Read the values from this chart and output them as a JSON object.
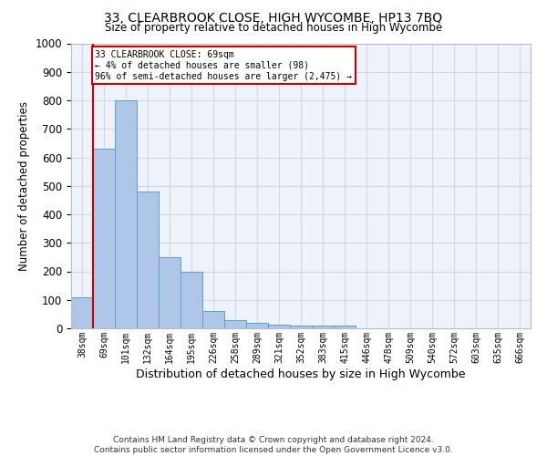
{
  "title": "33, CLEARBROOK CLOSE, HIGH WYCOMBE, HP13 7BQ",
  "subtitle": "Size of property relative to detached houses in High Wycombe",
  "xlabel": "Distribution of detached houses by size in High Wycombe",
  "ylabel": "Number of detached properties",
  "footer_line1": "Contains HM Land Registry data © Crown copyright and database right 2024.",
  "footer_line2": "Contains public sector information licensed under the Open Government Licence v3.0.",
  "bin_labels": [
    "38sqm",
    "69sqm",
    "101sqm",
    "132sqm",
    "164sqm",
    "195sqm",
    "226sqm",
    "258sqm",
    "289sqm",
    "321sqm",
    "352sqm",
    "383sqm",
    "415sqm",
    "446sqm",
    "478sqm",
    "509sqm",
    "540sqm",
    "572sqm",
    "603sqm",
    "635sqm",
    "666sqm"
  ],
  "bar_values": [
    110,
    630,
    800,
    480,
    250,
    200,
    62,
    28,
    20,
    13,
    10,
    10,
    10,
    0,
    0,
    0,
    0,
    0,
    0,
    0,
    0
  ],
  "bar_color": "#aec6e8",
  "bar_edge_color": "#5a9fd4",
  "grid_color": "#d0d8e8",
  "bg_color": "#eef2fa",
  "annotation_text": "33 CLEARBROOK CLOSE: 69sqm\n← 4% of detached houses are smaller (98)\n96% of semi-detached houses are larger (2,475) →",
  "annotation_box_color": "#ffffff",
  "annotation_box_edge": "#cc0000",
  "property_line_color": "#cc0000",
  "ylim": [
    0,
    1000
  ],
  "yticks": [
    0,
    100,
    200,
    300,
    400,
    500,
    600,
    700,
    800,
    900,
    1000
  ]
}
